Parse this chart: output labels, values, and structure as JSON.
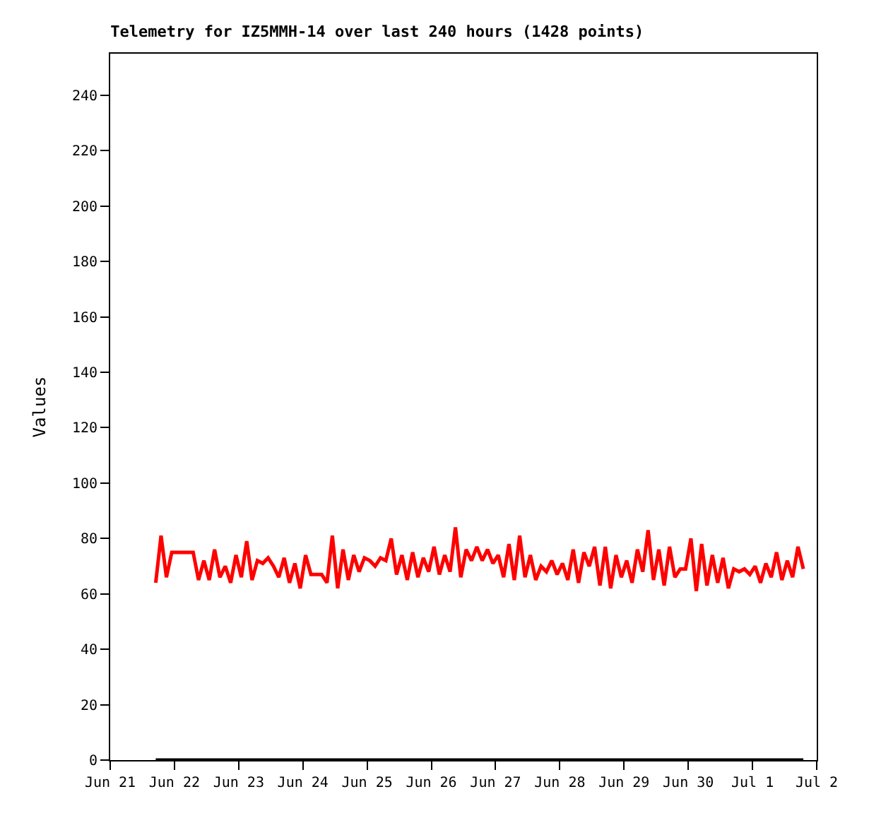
{
  "chart_data": {
    "type": "line",
    "title": "Telemetry for IZ5MMH-14 over last 240 hours (1428 points)",
    "ylabel": "Values",
    "x": [
      "--06-21T17:00",
      "--06-21T19:00",
      "--06-21T21:00",
      "--06-21T23:00",
      "--06-22T01:00",
      "--06-22T03:00",
      "--06-22T05:00",
      "--06-22T07:00",
      "--06-22T09:00",
      "--06-22T11:00",
      "--06-22T13:00",
      "--06-22T15:00",
      "--06-22T17:00",
      "--06-22T19:00",
      "--06-22T21:00",
      "--06-22T23:00",
      "--06-23T01:00",
      "--06-23T03:00",
      "--06-23T05:00",
      "--06-23T07:00",
      "--06-23T09:00",
      "--06-23T11:00",
      "--06-23T13:00",
      "--06-23T15:00",
      "--06-23T17:00",
      "--06-23T19:00",
      "--06-23T21:00",
      "--06-23T23:00",
      "--06-24T01:00",
      "--06-24T03:00",
      "--06-24T05:00",
      "--06-24T07:00",
      "--06-24T09:00",
      "--06-24T11:00",
      "--06-24T13:00",
      "--06-24T15:00",
      "--06-24T17:00",
      "--06-24T19:00",
      "--06-24T21:00",
      "--06-24T23:00",
      "--06-25T01:00",
      "--06-25T03:00",
      "--06-25T05:00",
      "--06-25T07:00",
      "--06-25T09:00",
      "--06-25T11:00",
      "--06-25T13:00",
      "--06-25T15:00",
      "--06-25T17:00",
      "--06-25T19:00",
      "--06-25T21:00",
      "--06-25T23:00",
      "--06-26T01:00",
      "--06-26T03:00",
      "--06-26T05:00",
      "--06-26T07:00",
      "--06-26T09:00",
      "--06-26T11:00",
      "--06-26T13:00",
      "--06-26T15:00",
      "--06-26T17:00",
      "--06-26T19:00",
      "--06-26T21:00",
      "--06-26T23:00",
      "--06-27T01:00",
      "--06-27T03:00",
      "--06-27T05:00",
      "--06-27T07:00",
      "--06-27T09:00",
      "--06-27T11:00",
      "--06-27T13:00",
      "--06-27T15:00",
      "--06-27T17:00",
      "--06-27T19:00",
      "--06-27T21:00",
      "--06-27T23:00",
      "--06-28T01:00",
      "--06-28T03:00",
      "--06-28T05:00",
      "--06-28T07:00",
      "--06-28T09:00",
      "--06-28T11:00",
      "--06-28T13:00",
      "--06-28T15:00",
      "--06-28T17:00",
      "--06-28T19:00",
      "--06-28T21:00",
      "--06-28T23:00",
      "--06-29T01:00",
      "--06-29T03:00",
      "--06-29T05:00",
      "--06-29T07:00",
      "--06-29T09:00",
      "--06-29T11:00",
      "--06-29T13:00",
      "--06-29T15:00",
      "--06-29T17:00",
      "--06-29T19:00",
      "--06-29T21:00",
      "--06-29T23:00",
      "--06-30T01:00",
      "--06-30T03:00",
      "--06-30T05:00",
      "--06-30T07:00",
      "--06-30T09:00",
      "--06-30T11:00",
      "--06-30T13:00",
      "--06-30T15:00",
      "--06-30T17:00",
      "--06-30T19:00",
      "--06-30T21:00",
      "--06-30T23:00",
      "--07-01T01:00",
      "--07-01T03:00",
      "--07-01T05:00",
      "--07-01T07:00",
      "--07-01T09:00",
      "--07-01T11:00",
      "--07-01T13:00",
      "--07-01T15:00",
      "--07-01T17:00",
      "--07-01T19:00"
    ],
    "series": [
      {
        "color": "#ff0000",
        "values": [
          64,
          81,
          66,
          75,
          75,
          75,
          75,
          75,
          65,
          72,
          65,
          76,
          66,
          70,
          64,
          74,
          66,
          79,
          65,
          72,
          71,
          73,
          70,
          66,
          73,
          64,
          71,
          62,
          74,
          67,
          67,
          67,
          64,
          81,
          62,
          76,
          65,
          74,
          68,
          73,
          72,
          70,
          73,
          72,
          80,
          67,
          74,
          65,
          75,
          66,
          73,
          68,
          77,
          67,
          74,
          68,
          84,
          66,
          76,
          72,
          77,
          72,
          76,
          71,
          74,
          66,
          78,
          65,
          81,
          66,
          74,
          65,
          70,
          68,
          72,
          67,
          71,
          65,
          76,
          64,
          75,
          70,
          77,
          63,
          77,
          62,
          74,
          66,
          72,
          64,
          76,
          68,
          83,
          65,
          76,
          63,
          77,
          66,
          69,
          69,
          80,
          61,
          78,
          63,
          74,
          64,
          73,
          62,
          69,
          68,
          69,
          67,
          70,
          64,
          71,
          66,
          75,
          65,
          72,
          66,
          77,
          69
        ]
      },
      {
        "color": "#000000",
        "x": [
          "--06-21T17:00",
          "--07-01T19:00"
        ],
        "values": [
          0,
          0
        ]
      }
    ],
    "xlim": [
      "--06-21",
      "--07-02"
    ],
    "xticks": [
      {
        "value": "--06-21",
        "label": "Jun 21"
      },
      {
        "value": "--06-22",
        "label": "Jun 22"
      },
      {
        "value": "--06-23",
        "label": "Jun 23"
      },
      {
        "value": "--06-24",
        "label": "Jun 24"
      },
      {
        "value": "--06-25",
        "label": "Jun 25"
      },
      {
        "value": "--06-26",
        "label": "Jun 26"
      },
      {
        "value": "--06-27",
        "label": "Jun 27"
      },
      {
        "value": "--06-28",
        "label": "Jun 28"
      },
      {
        "value": "--06-29",
        "label": "Jun 29"
      },
      {
        "value": "--06-30",
        "label": "Jun 30"
      },
      {
        "value": "--07-01",
        "label": "Jul 1"
      },
      {
        "value": "--07-02",
        "label": "Jul 2"
      }
    ],
    "ylim": [
      0,
      255
    ],
    "yticks": [
      0,
      20,
      40,
      60,
      80,
      100,
      120,
      140,
      160,
      180,
      200,
      220,
      240
    ],
    "marker": "none",
    "line_style": "solid"
  }
}
